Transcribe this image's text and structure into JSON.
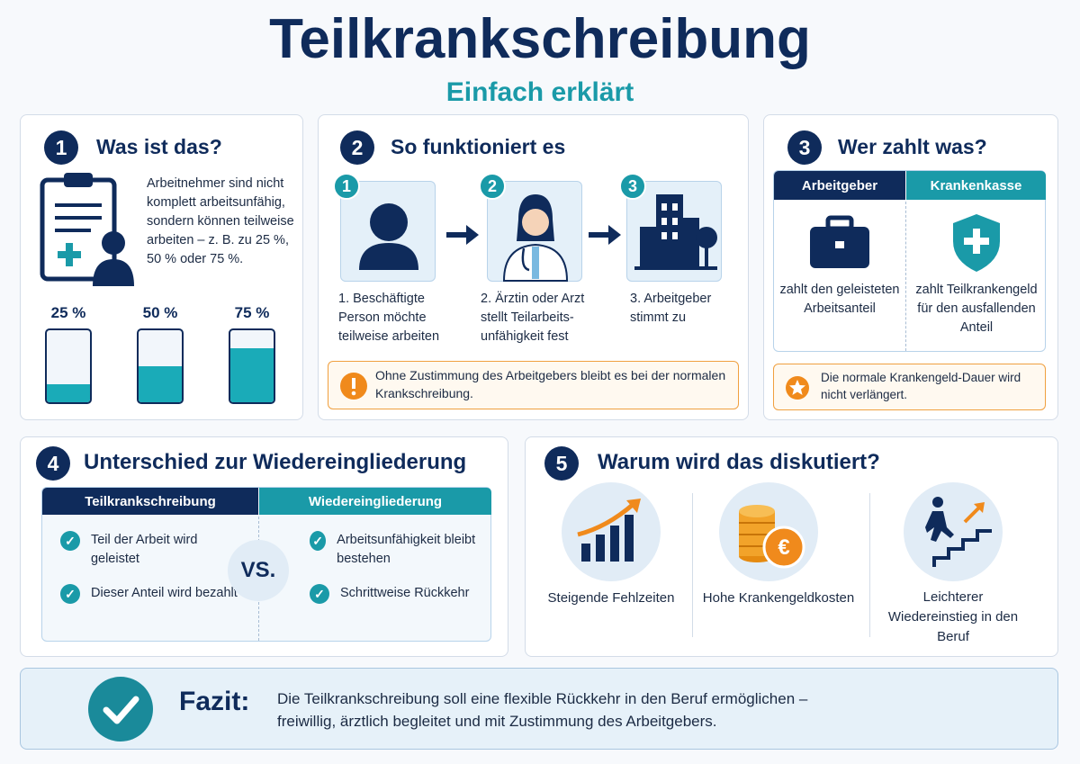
{
  "header": {
    "title": "Teilkrankschreibung",
    "subtitle": "Einfach erklärt"
  },
  "sections": [
    {
      "number": "1",
      "title": "Was ist das?",
      "text": "Arbeitnehmer sind nicht komplett arbeitsunfähig, sondern können teilweise arbeiten – z. B. zu 25 %, 50 % oder 75 %.",
      "levels": [
        {
          "value": 25,
          "label": "25 %"
        },
        {
          "value": 50,
          "label": "50 %"
        },
        {
          "value": 75,
          "label": "75 %"
        }
      ]
    },
    {
      "number": "2",
      "title": "So funktioniert es",
      "steps": [
        {
          "number": "1",
          "text": "1. Beschäftigte Person möchte teilweise arbeiten"
        },
        {
          "number": "2",
          "text": "2. Ärztin oder Arzt stellt Teilarbeits-unfähigkeit fest"
        },
        {
          "number": "3",
          "text": "3. Arbeitgeber stimmt zu"
        }
      ],
      "note": "Ohne Zustimmung des Arbeitgebers bleibt es bei der normalen Krankschreibung."
    },
    {
      "number": "3",
      "title": "Wer zahlt was?",
      "columns": [
        {
          "header": "Arbeitgeber",
          "text": "zahlt den geleisteten Arbeitsanteil"
        },
        {
          "header": "Krankenkasse",
          "text": "zahlt Teilkrankengeld für den ausfallenden Anteil"
        }
      ],
      "note": "Die normale Krankengeld-Dauer wird nicht verlängert."
    },
    {
      "number": "4",
      "title": "Unterschied zur Wiedereingliederung",
      "columns": [
        {
          "header": "Teilkrankschreibung",
          "items": [
            "Teil der Arbeit wird geleistet",
            "Dieser Anteil wird bezahlt"
          ]
        },
        {
          "header": "Wiedereingliederung",
          "items": [
            "Arbeitsunfähigkeit bleibt bestehen",
            "Schrittweise Rückkehr"
          ]
        }
      ],
      "vs": "VS."
    },
    {
      "number": "5",
      "title": "Warum wird das diskutiert?",
      "reasons": [
        "Steigende Fehlzeiten",
        "Hohe Krankengeldkosten",
        "Leichterer Wiedereinstieg in den Beruf"
      ]
    }
  ],
  "conclusion": {
    "label": "Fazit:",
    "text": "Die Teilkrankschreibung soll eine flexible Rückkehr in den Beruf ermöglichen – freiwillig, ärztlich begleitet und mit Zustimmung des Arbeitgebers."
  }
}
